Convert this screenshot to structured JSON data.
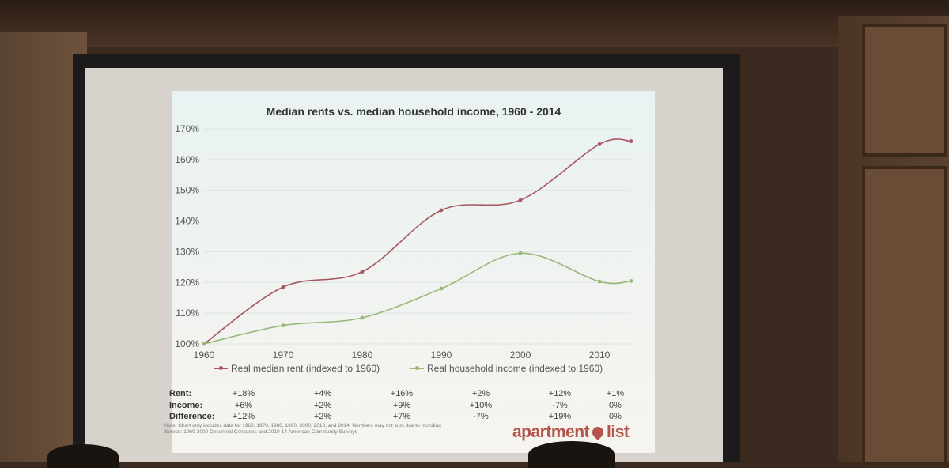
{
  "chart_data": {
    "type": "line",
    "title": "Median rents vs. median household income, 1960 - 2014",
    "xlabel": "",
    "ylabel": "",
    "x": [
      1960,
      1970,
      1980,
      1990,
      2000,
      2010,
      2014
    ],
    "x_ticks": [
      "1960",
      "1970",
      "1980",
      "1990",
      "2000",
      "2010"
    ],
    "y_ticks": [
      "100%",
      "110%",
      "120%",
      "130%",
      "140%",
      "150%",
      "160%",
      "170%"
    ],
    "xlim": [
      1960,
      2014
    ],
    "ylim": [
      100,
      170
    ],
    "grid": true,
    "legend_position": "bottom",
    "series": [
      {
        "name": "Real median rent (indexed to 1960)",
        "color": "#a8575f",
        "values": [
          100,
          118.5,
          123.5,
          143.5,
          146.8,
          165,
          166
        ]
      },
      {
        "name": "Real household income (indexed to 1960)",
        "color": "#97b878",
        "values": [
          100,
          106,
          108.5,
          118,
          129.5,
          120.3,
          120.5
        ]
      }
    ]
  },
  "table": {
    "labels": [
      "Rent:",
      "Income:",
      "Difference:"
    ],
    "rows": [
      [
        "+18%",
        "+4%",
        "+16%",
        "+2%",
        "+12%",
        "+1%"
      ],
      [
        "+6%",
        "+2%",
        "+9%",
        "+10%",
        "-7%",
        "0%"
      ],
      [
        "+12%",
        "+2%",
        "+7%",
        "-7%",
        "+19%",
        "0%"
      ]
    ]
  },
  "note": "Note: Chart only includes data for 1960, 1970, 1980, 1990, 2000, 2010, and 2014. Numbers may not sum due to rounding",
  "source": "Source: 1960-2000 Decennial Censuses and 2010-14 American Community Surveys",
  "logo": {
    "left": "apartment",
    "right": "list"
  }
}
